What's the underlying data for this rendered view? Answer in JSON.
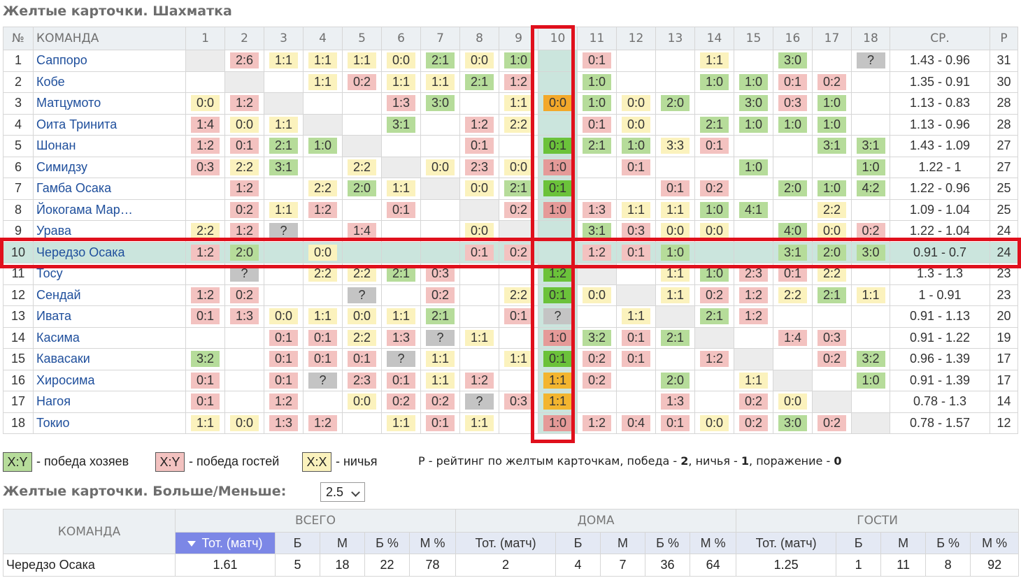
{
  "titles": {
    "crosstable": "Желтые карточки. Шахматка",
    "over_under": "Желтые карточки. Больше/Меньше:"
  },
  "crosstable": {
    "headers": {
      "num": "№",
      "team": "КОМАНДА",
      "avg": "СР.",
      "rating": "Р"
    },
    "columns": [
      "1",
      "2",
      "3",
      "4",
      "5",
      "6",
      "7",
      "8",
      "9",
      "10",
      "11",
      "12",
      "13",
      "14",
      "15",
      "16",
      "17",
      "18"
    ],
    "highlight_team": 10,
    "rows": [
      {
        "num": "1",
        "team": "Саппоро",
        "cells": [
          "",
          "2:6",
          "1:1",
          "1:1",
          "1:1",
          "0:0",
          "2:1",
          "0:0",
          "1:0",
          "",
          "0:1",
          "",
          "",
          "1:1",
          "",
          "3:0",
          "",
          "?"
        ],
        "avg": "1.43 - 0.96",
        "rating": "31"
      },
      {
        "num": "2",
        "team": "Кобе",
        "cells": [
          "",
          "",
          "",
          "1:1",
          "0:2",
          "1:1",
          "1:1",
          "2:1",
          "1:2",
          "",
          "1:0",
          "",
          "",
          "1:0",
          "1:0",
          "0:1",
          "0:2",
          ""
        ],
        "avg": "1.35 - 0.91",
        "rating": "30"
      },
      {
        "num": "3",
        "team": "Матцумото",
        "cells": [
          "0:0",
          "1:2",
          "",
          "",
          "",
          "1:3",
          "3:0",
          "",
          "1:1",
          "0:0",
          "1:0",
          "0:0",
          "2:0",
          "",
          "3:0",
          "0:3",
          "1:0",
          ""
        ],
        "avg": "1.13 - 0.83",
        "rating": "28"
      },
      {
        "num": "4",
        "team": "Оита Тринита",
        "cells": [
          "1:4",
          "0:0",
          "1:1",
          "",
          "",
          "3:1",
          "",
          "1:2",
          "2:2",
          "",
          "0:1",
          "0:0",
          "",
          "2:1",
          "1:0",
          "1:0",
          "1:0",
          ""
        ],
        "avg": "1.13 - 0.96",
        "rating": "28"
      },
      {
        "num": "5",
        "team": "Шонан",
        "cells": [
          "1:2",
          "0:1",
          "2:1",
          "1:0",
          "",
          "",
          "",
          "0:1",
          "",
          "0:1",
          "2:1",
          "1:0",
          "3:3",
          "0:1",
          "",
          "",
          "3:1",
          "3:1"
        ],
        "avg": "1.43 - 1.09",
        "rating": "27"
      },
      {
        "num": "6",
        "team": "Симидзу",
        "cells": [
          "0:3",
          "2:2",
          "3:1",
          "",
          "2:2",
          "",
          "0:0",
          "2:3",
          "0:0",
          "1:0",
          "",
          "0:1",
          "",
          "",
          "1:0",
          "",
          "",
          "1:0"
        ],
        "avg": "1.22 - 1",
        "rating": "27"
      },
      {
        "num": "7",
        "team": "Гамба Осака",
        "cells": [
          "",
          "1:2",
          "",
          "2:2",
          "2:0",
          "1:1",
          "",
          "0:0",
          "2:1",
          "0:1",
          "",
          "",
          "0:1",
          "0:2",
          "",
          "2:0",
          "1:0",
          "4:2"
        ],
        "avg": "1.22 - 0.96",
        "rating": "25"
      },
      {
        "num": "8",
        "team": "Йокогама Мар…",
        "cells": [
          "",
          "0:2",
          "1:1",
          "1:2",
          "",
          "0:1",
          "",
          "",
          "0:2",
          "1:0",
          "1:3",
          "1:1",
          "1:1",
          "1:0",
          "4:1",
          "",
          "2:2",
          ""
        ],
        "avg": "1.09 - 1.04",
        "rating": "25"
      },
      {
        "num": "9",
        "team": "Урава",
        "cells": [
          "2:2",
          "1:2",
          "?",
          "",
          "1:4",
          "",
          "",
          "0:0",
          "",
          "",
          "3:1",
          "0:3",
          "0:0",
          "0:0",
          "",
          "4:0",
          "0:0",
          "0:2"
        ],
        "avg": "1.22 - 1.04",
        "rating": "24"
      },
      {
        "num": "10",
        "team": "Чередзо Осака",
        "cells": [
          "1:2",
          "2:0",
          "",
          "0:0",
          "",
          "",
          "",
          "0:1",
          "0:2",
          "",
          "1:2",
          "0:1",
          "1:0",
          "",
          "",
          "3:1",
          "2:0",
          "3:0"
        ],
        "avg": "0.91 - 0.7",
        "rating": "24"
      },
      {
        "num": "11",
        "team": "Тосу",
        "cells": [
          "",
          "?",
          "",
          "2:2",
          "2:2",
          "2:1",
          "0:3",
          "",
          "",
          "1:2",
          "",
          "",
          "1:1",
          "1:0",
          "2:3",
          "0:1",
          "2:2",
          ""
        ],
        "avg": "1.3 - 1.3",
        "rating": "23"
      },
      {
        "num": "12",
        "team": "Сендай",
        "cells": [
          "1:2",
          "0:2",
          "",
          "",
          "?",
          "",
          "0:2",
          "",
          "2:2",
          "0:1",
          "0:0",
          "",
          "1:1",
          "0:2",
          "1:2",
          "2:2",
          "2:1",
          "1:1"
        ],
        "avg": "1 - 0.91",
        "rating": "23"
      },
      {
        "num": "13",
        "team": "Ивата",
        "cells": [
          "0:1",
          "1:3",
          "0:0",
          "1:1",
          "0:0",
          "1:1",
          "2:1",
          "",
          "0:1",
          "?",
          "",
          "1:1",
          "",
          "2:1",
          "1:2",
          "",
          "",
          ""
        ],
        "avg": "0.91 - 1.13",
        "rating": "20"
      },
      {
        "num": "14",
        "team": "Касима",
        "cells": [
          "",
          "",
          "0:1",
          "0:1",
          "2:2",
          "1:3",
          "?",
          "1:1",
          "",
          "1:0",
          "3:2",
          "0:1",
          "2:1",
          "",
          "",
          "1:4",
          "0:3",
          ""
        ],
        "avg": "0.91 - 1.22",
        "rating": "19"
      },
      {
        "num": "15",
        "team": "Кавасаки",
        "cells": [
          "3:2",
          "",
          "0:1",
          "0:1",
          "0:1",
          "?",
          "1:1",
          "",
          "1:1",
          "0:1",
          "0:2",
          "0:1",
          "",
          "1:2",
          "",
          "",
          "0:2",
          "3:2"
        ],
        "avg": "0.96 - 1.39",
        "rating": "17"
      },
      {
        "num": "16",
        "team": "Хиросима",
        "cells": [
          "0:1",
          "",
          "0:1",
          "?",
          "2:3",
          "0:1",
          "1:1",
          "1:2",
          "",
          "1:1",
          "0:2",
          "",
          "2:0",
          "",
          "1:1",
          "",
          "",
          "1:0"
        ],
        "avg": "0.91 - 1.39",
        "rating": "17"
      },
      {
        "num": "17",
        "team": "Нагоя",
        "cells": [
          "0:1",
          "",
          "1:2",
          "",
          "0:0",
          "0:2",
          "0:2",
          "?",
          "0:3",
          "1:1",
          "",
          "",
          "1:3",
          "",
          "0:2",
          "0:0",
          "",
          ""
        ],
        "avg": "0.78 - 1.3",
        "rating": "14"
      },
      {
        "num": "18",
        "team": "Токио",
        "cells": [
          "1:1",
          "0:0",
          "1:3",
          "1:2",
          "",
          "1:1",
          "0:1",
          "1:1",
          "",
          "1:0",
          "1:2",
          "0:4",
          "0:1",
          "0:0",
          "0:2",
          "3:0",
          "0:2",
          ""
        ],
        "avg": "0.78 - 1.57",
        "rating": "12"
      }
    ]
  },
  "legend": {
    "win_home_sample": "X:Y",
    "win_home_text": "- победа хозяев",
    "win_away_sample": "X:Y",
    "win_away_text": "- победа гостей",
    "draw_sample": "X:X",
    "draw_text": "- ничья",
    "rating_note_p1": "Р - рейтинг по желтым карточкам, победа - ",
    "rating_note_win": "2",
    "rating_note_p2": ", ничья - ",
    "rating_note_draw": "1",
    "rating_note_p3": ", поражение - ",
    "rating_note_loss": "0"
  },
  "over_under": {
    "threshold": "2.5",
    "groups": {
      "team": "КОМАНДА",
      "total": "ВСЕГО",
      "home": "ДОМА",
      "away": "ГОСТИ"
    },
    "subheaders": [
      "Тот. (матч)",
      "Б",
      "М",
      "Б %",
      "М %"
    ],
    "row": {
      "team": "Черeдзо Осака",
      "total": [
        "1.61",
        "5",
        "18",
        "22",
        "78"
      ],
      "home": [
        "2",
        "4",
        "7",
        "36",
        "64"
      ],
      "away": [
        "1.25",
        "1",
        "11",
        "8",
        "92"
      ]
    }
  },
  "colors": {
    "win": "#b6dc9a",
    "loss": "#f3c2c0",
    "draw": "#fbf2bd",
    "unknown": "#c4c4c4",
    "highlight": "#cbe5dd",
    "frame_red": "#e0101c",
    "sorted_header": "#7c87e6",
    "team_link": "#1f4f9c"
  }
}
